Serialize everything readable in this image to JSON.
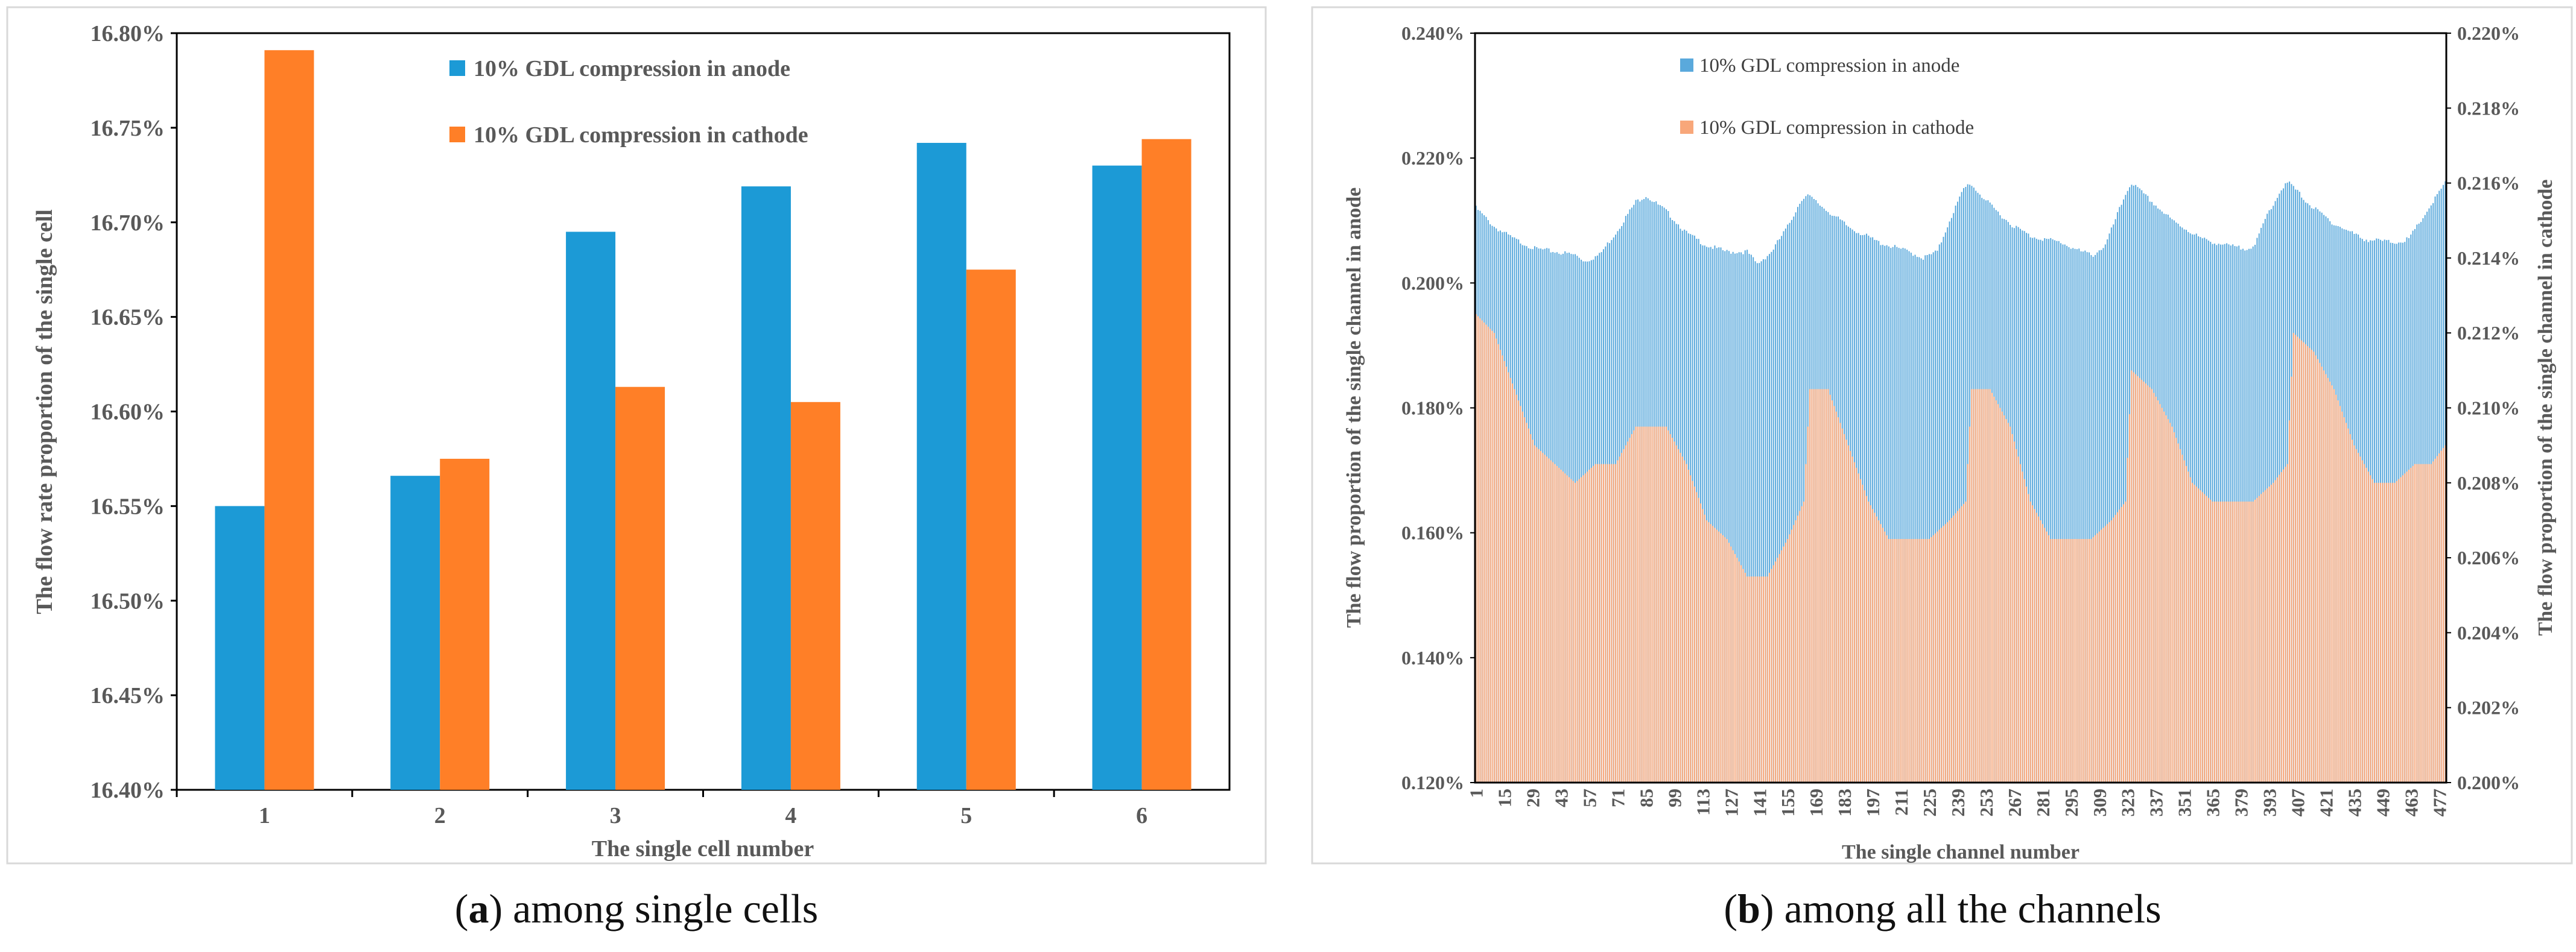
{
  "chart_data": [
    {
      "type": "bar",
      "panel_label": "a",
      "caption": "among single cells",
      "categories": [
        "1",
        "2",
        "3",
        "4",
        "5",
        "6"
      ],
      "series": [
        {
          "name": "10% GDL compression in anode",
          "color": "#1C9AD6",
          "values": [
            16.55,
            16.566,
            16.695,
            16.719,
            16.742,
            16.73
          ]
        },
        {
          "name": "10% GDL compression in cathode",
          "color": "#FF7F27",
          "values": [
            16.791,
            16.575,
            16.613,
            16.605,
            16.675,
            16.744
          ]
        }
      ],
      "xlabel": "The single cell number",
      "ylabel": "The flow rate proportion of the single cell",
      "ylim": [
        16.4,
        16.8
      ],
      "yticks": [
        "16.40%",
        "16.45%",
        "16.50%",
        "16.55%",
        "16.60%",
        "16.65%",
        "16.70%",
        "16.75%",
        "16.80%"
      ],
      "legend_position": "top-center"
    },
    {
      "type": "bar",
      "panel_label": "b",
      "caption": "among all the channels",
      "x_range": [
        1,
        480
      ],
      "x_ticks": [
        "1",
        "15",
        "29",
        "43",
        "57",
        "71",
        "85",
        "99",
        "113",
        "127",
        "141",
        "155",
        "169",
        "183",
        "197",
        "211",
        "225",
        "239",
        "253",
        "267",
        "281",
        "295",
        "309",
        "323",
        "337",
        "351",
        "365",
        "379",
        "393",
        "407",
        "421",
        "435",
        "449",
        "463",
        "477"
      ],
      "series": [
        {
          "name": "10% GDL compression in anode",
          "axis": "left",
          "color": "#5AA9DC",
          "keypoints": [
            [
              1,
              0.212
            ],
            [
              10,
              0.209
            ],
            [
              20,
              0.207
            ],
            [
              30,
              0.2055
            ],
            [
              40,
              0.205
            ],
            [
              50,
              0.2045
            ],
            [
              55,
              0.2035
            ],
            [
              62,
              0.2045
            ],
            [
              70,
              0.208
            ],
            [
              80,
              0.213
            ],
            [
              85,
              0.214
            ],
            [
              95,
              0.2115
            ],
            [
              105,
              0.208
            ],
            [
              115,
              0.206
            ],
            [
              125,
              0.205
            ],
            [
              135,
              0.205
            ],
            [
              140,
              0.203
            ],
            [
              147,
              0.205
            ],
            [
              155,
              0.209
            ],
            [
              162,
              0.2135
            ],
            [
              165,
              0.214
            ],
            [
              175,
              0.2115
            ],
            [
              185,
              0.209
            ],
            [
              200,
              0.2065
            ],
            [
              215,
              0.205
            ],
            [
              222,
              0.204
            ],
            [
              229,
              0.205
            ],
            [
              235,
              0.21
            ],
            [
              242,
              0.215
            ],
            [
              245,
              0.216
            ],
            [
              255,
              0.2125
            ],
            [
              265,
              0.2095
            ],
            [
              275,
              0.2075
            ],
            [
              290,
              0.2065
            ],
            [
              300,
              0.205
            ],
            [
              306,
              0.2045
            ],
            [
              312,
              0.206
            ],
            [
              318,
              0.211
            ],
            [
              323,
              0.215
            ],
            [
              325,
              0.216
            ],
            [
              335,
              0.213
            ],
            [
              345,
              0.21
            ],
            [
              360,
              0.207
            ],
            [
              372,
              0.206
            ],
            [
              380,
              0.2055
            ],
            [
              386,
              0.206
            ],
            [
              392,
              0.211
            ],
            [
              400,
              0.2155
            ],
            [
              403,
              0.216
            ],
            [
              413,
              0.2125
            ],
            [
              425,
              0.2095
            ],
            [
              440,
              0.207
            ],
            [
              455,
              0.2065
            ],
            [
              462,
              0.207
            ],
            [
              470,
              0.211
            ],
            [
              480,
              0.216
            ]
          ]
        },
        {
          "name": "10% GDL compression in cathode",
          "axis": "right",
          "color": "#F8A77A",
          "keypoints": [
            [
              1,
              0.2125
            ],
            [
              10,
              0.212
            ],
            [
              20,
              0.2105
            ],
            [
              30,
              0.209
            ],
            [
              40,
              0.2085
            ],
            [
              50,
              0.208
            ],
            [
              60,
              0.2085
            ],
            [
              70,
              0.2085
            ],
            [
              80,
              0.2095
            ],
            [
              85,
              0.2095
            ],
            [
              95,
              0.2095
            ],
            [
              105,
              0.2085
            ],
            [
              115,
              0.207
            ],
            [
              125,
              0.2065
            ],
            [
              135,
              0.2055
            ],
            [
              145,
              0.2055
            ],
            [
              155,
              0.2065
            ],
            [
              163,
              0.2075
            ],
            [
              166,
              0.2105
            ],
            [
              175,
              0.2105
            ],
            [
              185,
              0.209
            ],
            [
              195,
              0.2075
            ],
            [
              205,
              0.2065
            ],
            [
              215,
              0.2065
            ],
            [
              225,
              0.2065
            ],
            [
              235,
              0.207
            ],
            [
              243,
              0.2075
            ],
            [
              246,
              0.2105
            ],
            [
              255,
              0.2105
            ],
            [
              265,
              0.2095
            ],
            [
              275,
              0.2075
            ],
            [
              285,
              0.2065
            ],
            [
              295,
              0.2065
            ],
            [
              305,
              0.2065
            ],
            [
              315,
              0.207
            ],
            [
              322,
              0.2075
            ],
            [
              325,
              0.211
            ],
            [
              335,
              0.2105
            ],
            [
              345,
              0.2095
            ],
            [
              355,
              0.208
            ],
            [
              365,
              0.2075
            ],
            [
              375,
              0.2075
            ],
            [
              385,
              0.2075
            ],
            [
              395,
              0.208
            ],
            [
              402,
              0.2085
            ],
            [
              405,
              0.212
            ],
            [
              415,
              0.2115
            ],
            [
              425,
              0.2105
            ],
            [
              435,
              0.209
            ],
            [
              445,
              0.208
            ],
            [
              455,
              0.208
            ],
            [
              465,
              0.2085
            ],
            [
              473,
              0.2085
            ],
            [
              480,
              0.209
            ]
          ]
        }
      ],
      "xlabel": "The single channel number",
      "ylabel_left": "The flow proportion of the single channel in anode",
      "ylabel_right": "The flow proportion of the single channel in cathode",
      "ylim_left": [
        0.12,
        0.24
      ],
      "ylim_right": [
        0.2,
        0.22
      ],
      "yticks_left": [
        "0.120%",
        "0.140%",
        "0.160%",
        "0.180%",
        "0.200%",
        "0.220%",
        "0.240%"
      ],
      "yticks_right": [
        "0.200%",
        "0.202%",
        "0.204%",
        "0.206%",
        "0.208%",
        "0.210%",
        "0.212%",
        "0.214%",
        "0.216%",
        "0.218%",
        "0.220%"
      ],
      "legend_position": "top-left"
    }
  ]
}
